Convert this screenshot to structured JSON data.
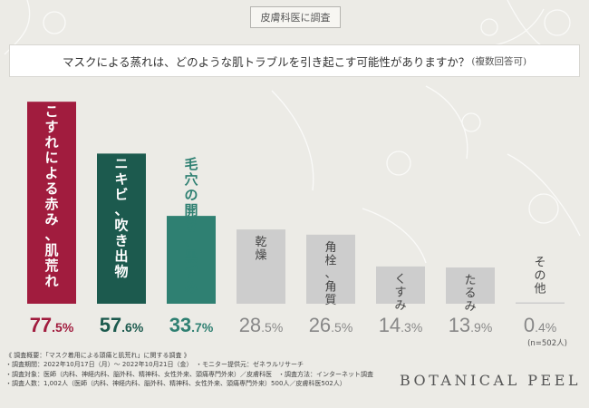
{
  "header_tag": "皮膚科医に調査",
  "question": {
    "text": "マスクによる蒸れは、どのような肌トラブルを引き起こす可能性がありますか？",
    "note": "(複数回答可)"
  },
  "colors": {
    "bar_top1": "#a11c3e",
    "bar_top2": "#1c5a4e",
    "bar_top3": "#2f8072",
    "bar_other": "#cdcdcd",
    "label_top1": "#a11c3e",
    "label_top2": "#1c5a4e",
    "label_top3": "#2f8072",
    "label_other": "#888888",
    "background": "#ecebe6"
  },
  "chart_data": {
    "type": "bar",
    "categories": [
      "こすれによる赤み、肌荒れ",
      "ニキビ、吹き出物",
      "毛穴の開き、黒ずみ",
      "乾燥",
      "角栓、角質",
      "くすみ",
      "たるみ",
      "その他"
    ],
    "values": [
      77.5,
      57.6,
      33.7,
      28.5,
      26.5,
      14.3,
      13.9,
      0.4
    ],
    "value_labels": [
      "77.5%",
      "57.6%",
      "33.7%",
      "28.5%",
      "26.5%",
      "14.3%",
      "13.9%",
      "0.4%"
    ],
    "unit": "%",
    "sample_note": "(n=502人)",
    "ylim": [
      0,
      80
    ],
    "grid": false,
    "legend": "none"
  },
  "footnotes": [
    "《 調査概要：「マスク着用による頭痛と肌荒れ」に関する調査 》",
    "・調査期間：2022年10月17日（月）～ 2022年10月21日（金）　・モニター提供元：ゼネラルリサーチ",
    "・調査対象：医師（内科、神経内科、脳外科、精神科、女性外来、頭痛専門外来）／皮膚科医　・調査方法：インターネット調査",
    "・調査人数：1,002人（医師（内科、神経内科、脳外科、精神科、女性外来、頭痛専門外来）500人／皮膚科医502人）"
  ],
  "brand": "BOTANICAL PEEL"
}
